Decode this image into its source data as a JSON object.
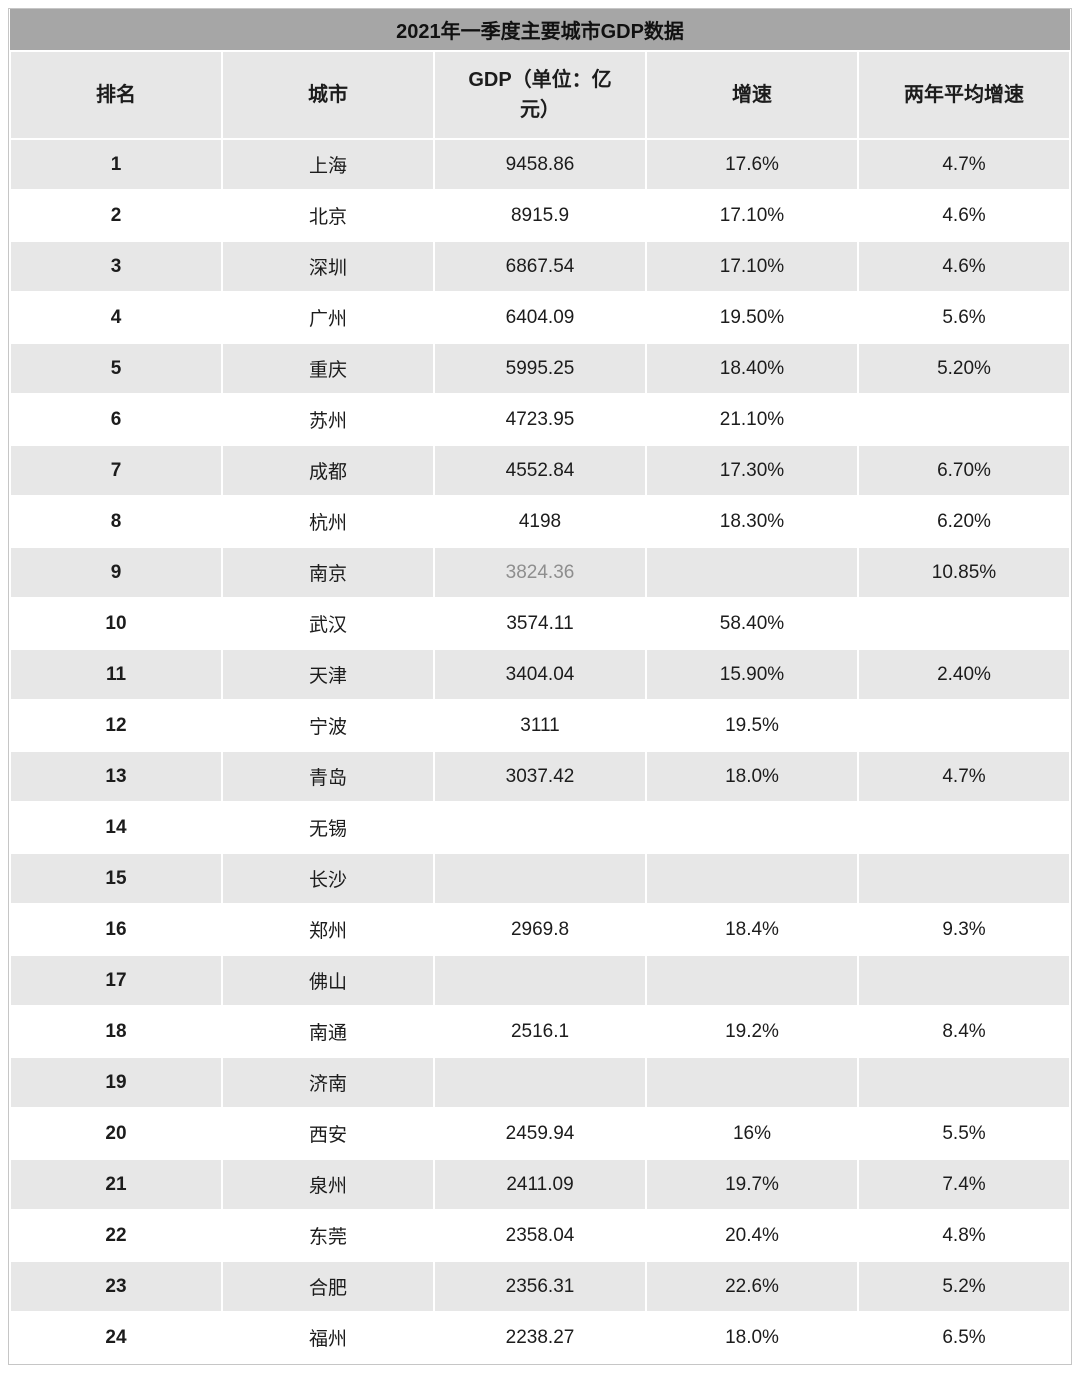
{
  "chart_data": {
    "type": "table",
    "title": "2021年一季度主要城市GDP数据",
    "columns": [
      "排名",
      "城市",
      "GDP（单位：亿元）",
      "增速",
      "两年平均增速"
    ],
    "rows": [
      [
        "1",
        "上海",
        "9458.86",
        "17.6%",
        "4.7%"
      ],
      [
        "2",
        "北京",
        "8915.9",
        "17.10%",
        "4.6%"
      ],
      [
        "3",
        "深圳",
        "6867.54",
        "17.10%",
        "4.6%"
      ],
      [
        "4",
        "广州",
        "6404.09",
        "19.50%",
        "5.6%"
      ],
      [
        "5",
        "重庆",
        "5995.25",
        "18.40%",
        "5.20%"
      ],
      [
        "6",
        "苏州",
        "4723.95",
        "21.10%",
        ""
      ],
      [
        "7",
        "成都",
        "4552.84",
        "17.30%",
        "6.70%"
      ],
      [
        "8",
        "杭州",
        "4198",
        "18.30%",
        "6.20%"
      ],
      [
        "9",
        "南京",
        "3824.36",
        "",
        "10.85%"
      ],
      [
        "10",
        "武汉",
        "3574.11",
        "58.40%",
        ""
      ],
      [
        "11",
        "天津",
        "3404.04",
        "15.90%",
        "2.40%"
      ],
      [
        "12",
        "宁波",
        "3111",
        "19.5%",
        ""
      ],
      [
        "13",
        "青岛",
        "3037.42",
        "18.0%",
        "4.7%"
      ],
      [
        "14",
        "无锡",
        "",
        "",
        ""
      ],
      [
        "15",
        "长沙",
        "",
        "",
        ""
      ],
      [
        "16",
        "郑州",
        "2969.8",
        "18.4%",
        "9.3%"
      ],
      [
        "17",
        "佛山",
        "",
        "",
        ""
      ],
      [
        "18",
        "南通",
        "2516.1",
        "19.2%",
        "8.4%"
      ],
      [
        "19",
        "济南",
        "",
        "",
        ""
      ],
      [
        "20",
        "西安",
        "2459.94",
        "16%",
        "5.5%"
      ],
      [
        "21",
        "泉州",
        "2411.09",
        "19.7%",
        "7.4%"
      ],
      [
        "22",
        "东莞",
        "2358.04",
        "20.4%",
        "4.8%"
      ],
      [
        "23",
        "合肥",
        "2356.31",
        "22.6%",
        "5.2%"
      ],
      [
        "24",
        "福州",
        "2238.27",
        "18.0%",
        "6.5%"
      ]
    ]
  },
  "muted_cells": [
    [
      8,
      2
    ]
  ],
  "colors": {
    "title_bg": "#a6a6a6",
    "header_bg": "#e7e7e7",
    "row_alt_bg": "#e7e7e7",
    "muted_text": "#8e8e8e"
  }
}
